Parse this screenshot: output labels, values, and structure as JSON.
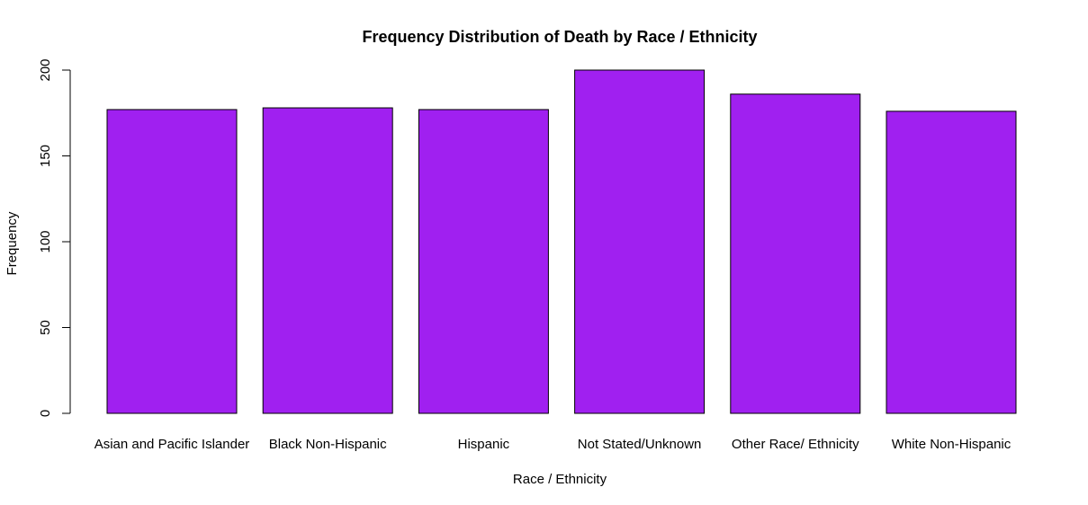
{
  "chart_data": {
    "type": "bar",
    "title": "Frequency Distribution of Death by Race / Ethnicity",
    "xlabel": "Race / Ethnicity",
    "ylabel": "Frequency",
    "categories": [
      "Asian and Pacific Islander",
      "Black Non-Hispanic",
      "Hispanic",
      "Not Stated/Unknown",
      "Other Race/ Ethnicity",
      "White Non-Hispanic"
    ],
    "values": [
      177,
      178,
      177,
      200,
      186,
      176
    ],
    "ylim": [
      0,
      200
    ],
    "yticks": [
      "0",
      "50",
      "100",
      "150",
      "200"
    ],
    "bar_color": "#a020f0",
    "grid": false,
    "legend": "none"
  }
}
